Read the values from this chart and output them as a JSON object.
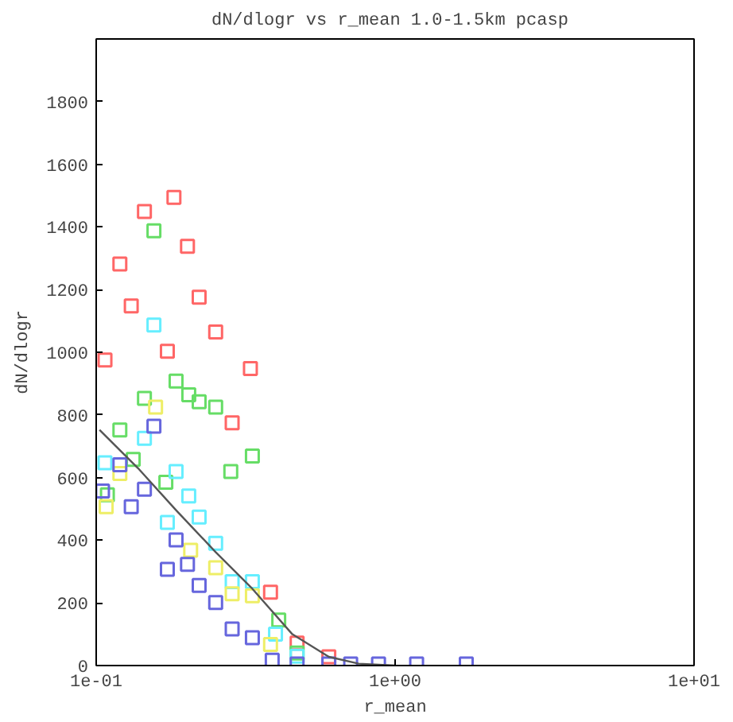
{
  "chart_data": {
    "type": "scatter",
    "title": "dN/dlogr vs r_mean 1.0-1.5km  pcasp",
    "xlabel": "r_mean",
    "ylabel": "dN/dlogr",
    "log": "x",
    "grid": false,
    "marker": "square",
    "xlim": [
      0.1,
      10
    ],
    "xticks": [
      {
        "value": 0.1,
        "label": "1e-01"
      },
      {
        "value": 1,
        "label": "1e+00"
      },
      {
        "value": 10,
        "label": "1e+01"
      }
    ],
    "ylim": [
      0,
      2000
    ],
    "yticks": [
      0,
      200,
      400,
      600,
      800,
      1000,
      1200,
      1400,
      1600,
      1800
    ],
    "series": [
      {
        "color": "#ff6666",
        "x": [
          0.107,
          0.12,
          0.131,
          0.145,
          0.173,
          0.182,
          0.202,
          0.221,
          0.251,
          0.285,
          0.328,
          0.383,
          0.47,
          0.6
        ],
        "values": [
          975,
          1282,
          1148,
          1449,
          1003,
          1494,
          1338,
          1176,
          1065,
          775,
          948,
          234,
          72,
          28
        ]
      },
      {
        "color": "#66dd66",
        "x": [
          0.109,
          0.12,
          0.133,
          0.145,
          0.156,
          0.171,
          0.185,
          0.204,
          0.221,
          0.251,
          0.282,
          0.333,
          0.408,
          0.47
        ],
        "values": [
          545,
          752,
          658,
          853,
          1388,
          585,
          908,
          864,
          842,
          825,
          619,
          669,
          145,
          40
        ]
      },
      {
        "color": "#66eeff",
        "x": [
          0.107,
          0.145,
          0.156,
          0.173,
          0.185,
          0.204,
          0.221,
          0.251,
          0.285,
          0.333,
          0.398,
          0.47
        ],
        "values": [
          647,
          725,
          1087,
          457,
          619,
          541,
          474,
          390,
          268,
          268,
          100,
          30
        ]
      },
      {
        "color": "#eeee66",
        "x": [
          0.108,
          0.12,
          0.158,
          0.207,
          0.251,
          0.285,
          0.333,
          0.383
        ],
        "values": [
          507,
          613,
          825,
          368,
          312,
          229,
          223,
          67
        ]
      },
      {
        "color": "#6666dd",
        "x": [
          0.105,
          0.12,
          0.131,
          0.145,
          0.156,
          0.173,
          0.185,
          0.202,
          0.221,
          0.251,
          0.285,
          0.333,
          0.388,
          0.47,
          0.6,
          0.71,
          0.88,
          1.18,
          1.73
        ],
        "values": [
          557,
          641,
          507,
          563,
          764,
          307,
          401,
          323,
          256,
          201,
          117,
          89,
          17,
          5,
          5,
          5,
          5,
          5,
          5
        ]
      },
      {
        "type": "line",
        "marker": "none",
        "color": "#555555",
        "x": [
          0.1026,
          0.138,
          0.185,
          0.251,
          0.333,
          0.453,
          0.6,
          0.755,
          1.0
        ],
        "values": [
          752,
          630,
          496,
          362,
          245,
          100,
          28,
          6,
          0
        ]
      }
    ]
  }
}
